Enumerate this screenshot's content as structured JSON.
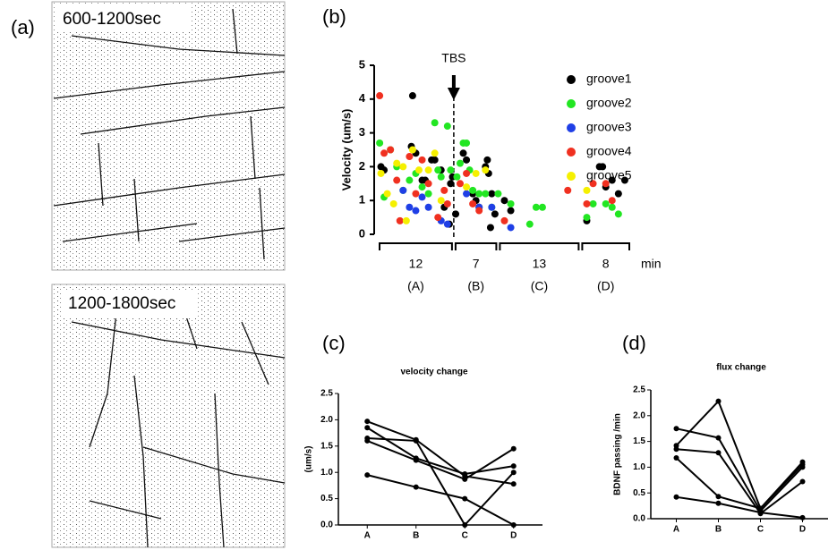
{
  "images": {
    "panel_label": "(a)",
    "captions": [
      "600-1200sec",
      "1200-1800sec"
    ]
  },
  "chart_data": [
    {
      "type": "scatter",
      "panel_label": "(b)",
      "y_label": "Velocity (um/s)",
      "ylim": [
        0,
        5
      ],
      "yticks": [
        0,
        1,
        2,
        3,
        4,
        5
      ],
      "xlim": [
        0,
        40
      ],
      "annotation": {
        "text": "TBS",
        "x": 12
      },
      "segments": [
        {
          "duration": 12,
          "label": "(A)"
        },
        {
          "duration": 7,
          "label": "(B)"
        },
        {
          "duration": 13,
          "label": "(C)"
        },
        {
          "duration": 8,
          "label": "(D)"
        }
      ],
      "x_unit": "min",
      "series": [
        {
          "name": "groove1",
          "color": "#000000",
          "x": [
            0.5,
            1,
            5.5,
            5.3,
            6,
            7,
            7.5,
            8.5,
            9,
            10,
            10.5,
            11.5,
            11.8,
            11.3,
            12.3,
            13.5,
            14,
            15,
            15.5,
            16,
            17,
            17.3,
            17.5,
            18,
            18.5,
            17.8,
            20,
            21,
            33,
            35,
            35.5,
            36,
            37,
            38,
            39
          ],
          "values": [
            2.0,
            1.9,
            4.1,
            2.6,
            2.4,
            1.6,
            1.6,
            2.2,
            2.2,
            1.9,
            0.8,
            1.5,
            1.7,
            0.3,
            0.6,
            2.4,
            2.2,
            1.2,
            1.0,
            0.8,
            2.0,
            2.2,
            1.8,
            1.2,
            0.6,
            0.2,
            1.0,
            0.7,
            0.4,
            2.0,
            2.0,
            1.4,
            1.6,
            1.2,
            1.6
          ]
        },
        {
          "name": "groove2",
          "color": "#22e622",
          "x": [
            0.3,
            1,
            2,
            3,
            4,
            5,
            6,
            7,
            8,
            9,
            9.5,
            10,
            11,
            11.5,
            12.5,
            13,
            13.5,
            14,
            14.5,
            15,
            16,
            17,
            18,
            19,
            21,
            24,
            25,
            26,
            33,
            34,
            36,
            37,
            38
          ],
          "values": [
            2.7,
            1.1,
            2.5,
            2.0,
            1.3,
            1.6,
            1.8,
            1.4,
            1.2,
            3.3,
            1.9,
            1.7,
            3.2,
            1.9,
            1.7,
            2.1,
            2.7,
            2.7,
            1.9,
            1.3,
            1.2,
            1.2,
            0.8,
            1.2,
            0.9,
            0.3,
            0.8,
            0.8,
            0.5,
            0.9,
            0.9,
            0.8,
            0.6
          ]
        },
        {
          "name": "groove3",
          "color": "#1f3fe6",
          "x": [
            4,
            5,
            6,
            7,
            8,
            10,
            11,
            14,
            16,
            18,
            21
          ],
          "values": [
            1.3,
            0.8,
            0.7,
            1.1,
            0.8,
            0.4,
            0.3,
            1.2,
            0.8,
            0.8,
            0.2
          ]
        },
        {
          "name": "groove4",
          "color": "#f03020",
          "x": [
            0.3,
            1,
            2,
            3,
            3.5,
            5,
            6,
            7,
            8,
            9.5,
            10.5,
            11,
            13,
            14,
            15,
            16,
            20,
            30,
            33,
            34,
            36,
            37
          ],
          "values": [
            4.1,
            2.4,
            2.5,
            1.6,
            0.4,
            2.3,
            1.2,
            2.2,
            1.5,
            0.5,
            1.3,
            0.9,
            1.5,
            1.8,
            0.9,
            0.7,
            0.4,
            1.3,
            0.9,
            1.5,
            1.5,
            1.0
          ]
        },
        {
          "name": "groove5",
          "color": "#f5f000",
          "x": [
            0.5,
            1.5,
            2.5,
            3,
            4,
            4.5,
            5.5,
            6.5,
            8,
            9,
            10,
            14,
            15.5,
            17,
            33
          ],
          "values": [
            1.8,
            1.2,
            0.9,
            2.1,
            2.0,
            0.4,
            2.5,
            1.9,
            1.9,
            2.4,
            1.0,
            1.4,
            1.8,
            1.9,
            1.3
          ]
        }
      ]
    },
    {
      "type": "line",
      "panel_label": "(c)",
      "title": "velocity change",
      "y_label": "(um/s)",
      "categories": [
        "A",
        "B",
        "C",
        "D"
      ],
      "ylim": [
        0,
        2.5
      ],
      "yticks": [
        {
          "value": 0,
          "label": "0.0"
        },
        {
          "value": 0.5,
          "label": "0.5"
        },
        {
          "value": 1,
          "label": "1.0"
        },
        {
          "value": 1.5,
          "label": "1.5"
        },
        {
          "value": 2,
          "label": "2.0"
        },
        {
          "value": 2.5,
          "label": "2.5"
        }
      ],
      "color": "#000000",
      "series": [
        {
          "values": [
            1.97,
            1.62,
            0.93,
            0.78
          ]
        },
        {
          "values": [
            1.85,
            1.27,
            0.97,
            1.12
          ]
        },
        {
          "values": [
            1.65,
            1.6,
            0.0,
            1.0
          ]
        },
        {
          "values": [
            1.6,
            1.23,
            0.87,
            1.45
          ]
        },
        {
          "values": [
            0.95,
            0.72,
            0.5,
            0.0
          ]
        }
      ]
    },
    {
      "type": "line",
      "panel_label": "(d)",
      "title": "flux change",
      "y_label": "BDNF passing /min",
      "categories": [
        "A",
        "B",
        "C",
        "D"
      ],
      "ylim": [
        0,
        2.5
      ],
      "yticks": [
        {
          "value": 0,
          "label": "0.0"
        },
        {
          "value": 0.5,
          "label": "0.5"
        },
        {
          "value": 1,
          "label": "1.0"
        },
        {
          "value": 1.5,
          "label": "1.5"
        },
        {
          "value": 2,
          "label": "2.0"
        },
        {
          "value": 2.5,
          "label": "2.5"
        }
      ],
      "color": "#000000",
      "series": [
        {
          "values": [
            1.42,
            2.28,
            0.2,
            1.1
          ]
        },
        {
          "values": [
            1.75,
            1.57,
            0.15,
            1.0
          ]
        },
        {
          "values": [
            1.35,
            1.28,
            0.1,
            0.72
          ]
        },
        {
          "values": [
            1.18,
            0.43,
            0.2,
            1.05
          ]
        },
        {
          "values": [
            0.42,
            0.3,
            0.12,
            0.02
          ]
        }
      ]
    }
  ]
}
